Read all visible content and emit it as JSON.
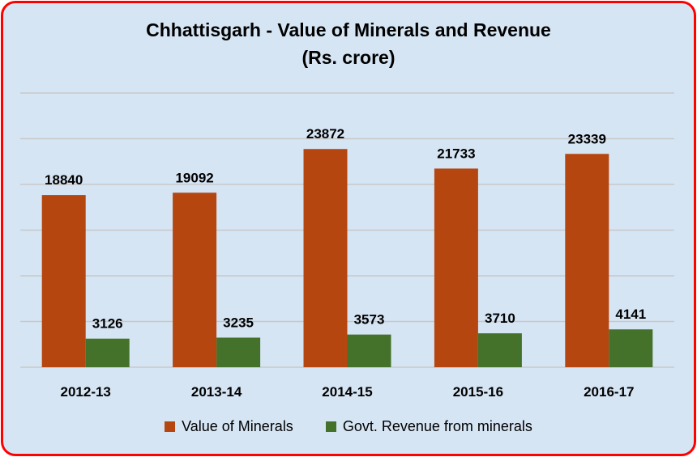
{
  "chart_data": {
    "type": "bar",
    "title": "Chhattisgarh - Value of Minerals and Revenue",
    "subtitle": "(Rs. crore)",
    "categories": [
      "2012-13",
      "2013-14",
      "2014-15",
      "2015-16",
      "2016-17"
    ],
    "series": [
      {
        "name": "Value of Minerals",
        "values": [
          18840,
          19092,
          23872,
          21733,
          23339
        ],
        "color": "#b5460f"
      },
      {
        "name": "Govt. Revenue from minerals",
        "values": [
          3126,
          3235,
          3573,
          3710,
          4141
        ],
        "color": "#44722a"
      }
    ],
    "ylim": [
      0,
      30000
    ],
    "grid": true,
    "legend": "bottom",
    "xlabel": "",
    "ylabel": ""
  },
  "colors": {
    "background": "#d6e5f4",
    "border": "#ff0000",
    "gridline": "#c8c8c8"
  }
}
